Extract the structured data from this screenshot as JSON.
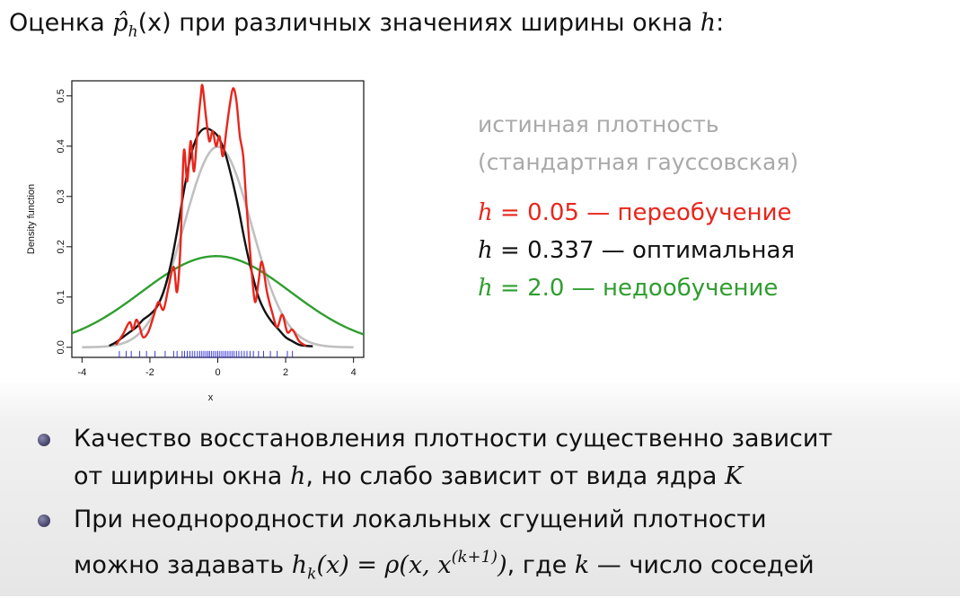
{
  "title": {
    "text": "Оценка ",
    "symbol": "p̂",
    "subscript": "h",
    "arg": "(x)",
    "rest": " при различных значениях ширины окна ",
    "var": "h",
    "colon": ":"
  },
  "legend": {
    "true_line1": "истинная плотность",
    "true_line2": "(стандартная гауссовская)",
    "red": {
      "var": "h",
      "eq": " = 0.05 — ",
      "text": "переобучение"
    },
    "black": {
      "var": "h",
      "eq": " = 0.337 — ",
      "text": "оптимальная"
    },
    "green": {
      "var": "h",
      "eq": " = 2.0 — ",
      "text": "недообучение"
    }
  },
  "bullets": {
    "b1_line1": "Качество восстановления плотности существенно зависит",
    "b1_line2_a": "от ширины окна ",
    "b1_line2_var": "h",
    "b1_line2_b": ", но слабо зависит от вида ядра ",
    "b1_line2_var2": "K",
    "b2_line1": "При неоднородности локальных сгущений плотности",
    "b2_line2_a": "можно задавать ",
    "b2_line2_formula": "h",
    "b2_line2_sub": "k",
    "b2_line2_eq": "(x) = ρ(x, x",
    "b2_line2_sup": "(k+1)",
    "b2_line2_close": ")",
    "b2_line2_b": ", где ",
    "b2_line2_k": "k",
    "b2_line2_c": " — число соседей"
  },
  "chart_data": {
    "type": "line",
    "xlabel": "x",
    "ylabel": "Density function",
    "xlim": [
      -4.3,
      4.3
    ],
    "ylim": [
      -0.02,
      0.53
    ],
    "xticks": [
      -4,
      -2,
      0,
      2,
      4
    ],
    "yticks": [
      0.0,
      0.1,
      0.2,
      0.3,
      0.4,
      0.5
    ],
    "grid": false,
    "colors": {
      "true": "#c0c0c0",
      "red": "#e8261c",
      "black": "#111111",
      "green": "#2f9e2f",
      "rug": "#3a3ad8"
    },
    "series": [
      {
        "key": "true",
        "color": "#c0c0c0",
        "type": "function",
        "fn": "gaussian",
        "mu": 0,
        "sigma": 1,
        "x_range": [
          -4,
          4
        ]
      },
      {
        "key": "green",
        "color": "#2f9e2f",
        "type": "function",
        "fn": "gaussian",
        "mu": -0.05,
        "sigma": 2.2,
        "x_range": [
          -4.3,
          4.3
        ]
      },
      {
        "key": "black",
        "color": "#111111",
        "type": "points",
        "x": [
          -3.2,
          -3.0,
          -2.8,
          -2.6,
          -2.4,
          -2.2,
          -2.0,
          -1.8,
          -1.6,
          -1.4,
          -1.2,
          -1.0,
          -0.8,
          -0.6,
          -0.4,
          -0.2,
          0.0,
          0.2,
          0.4,
          0.6,
          0.8,
          1.0,
          1.2,
          1.4,
          1.6,
          1.8,
          2.0,
          2.2,
          2.4,
          2.6,
          2.8
        ],
        "y": [
          0.003,
          0.01,
          0.02,
          0.03,
          0.04,
          0.055,
          0.065,
          0.08,
          0.11,
          0.16,
          0.23,
          0.31,
          0.38,
          0.42,
          0.435,
          0.432,
          0.42,
          0.39,
          0.34,
          0.28,
          0.21,
          0.15,
          0.1,
          0.07,
          0.05,
          0.035,
          0.02,
          0.012,
          0.005,
          0.003,
          0.002
        ]
      },
      {
        "key": "red",
        "color": "#e8261c",
        "type": "points",
        "x": [
          -3.0,
          -2.8,
          -2.6,
          -2.5,
          -2.4,
          -2.3,
          -2.2,
          -2.05,
          -1.9,
          -1.75,
          -1.6,
          -1.45,
          -1.3,
          -1.2,
          -1.1,
          -1.0,
          -0.9,
          -0.8,
          -0.7,
          -0.6,
          -0.5,
          -0.45,
          -0.35,
          -0.25,
          -0.15,
          -0.05,
          0.05,
          0.15,
          0.25,
          0.35,
          0.45,
          0.55,
          0.65,
          0.75,
          0.85,
          1.0,
          1.1,
          1.2,
          1.3,
          1.45,
          1.6,
          1.75,
          1.9,
          2.05,
          2.2,
          2.4,
          2.6
        ],
        "y": [
          0.005,
          0.025,
          0.05,
          0.035,
          0.055,
          0.04,
          0.02,
          0.03,
          0.06,
          0.09,
          0.075,
          0.12,
          0.16,
          0.11,
          0.2,
          0.39,
          0.33,
          0.41,
          0.35,
          0.43,
          0.5,
          0.52,
          0.46,
          0.41,
          0.43,
          0.4,
          0.42,
          0.38,
          0.43,
          0.48,
          0.515,
          0.49,
          0.42,
          0.38,
          0.28,
          0.15,
          0.09,
          0.13,
          0.17,
          0.11,
          0.07,
          0.04,
          0.065,
          0.03,
          0.035,
          0.012,
          0.003
        ]
      }
    ],
    "rug_x": [
      -2.9,
      -2.7,
      -2.55,
      -2.3,
      -2.1,
      -1.85,
      -1.55,
      -1.3,
      -1.2,
      -1.05,
      -0.98,
      -0.9,
      -0.82,
      -0.75,
      -0.68,
      -0.6,
      -0.53,
      -0.47,
      -0.41,
      -0.35,
      -0.29,
      -0.24,
      -0.18,
      -0.12,
      -0.06,
      0.0,
      0.06,
      0.12,
      0.18,
      0.24,
      0.3,
      0.36,
      0.42,
      0.48,
      0.55,
      0.62,
      0.7,
      0.78,
      0.86,
      0.95,
      1.05,
      1.2,
      1.35,
      1.55,
      1.75,
      2.05,
      2.2
    ]
  }
}
